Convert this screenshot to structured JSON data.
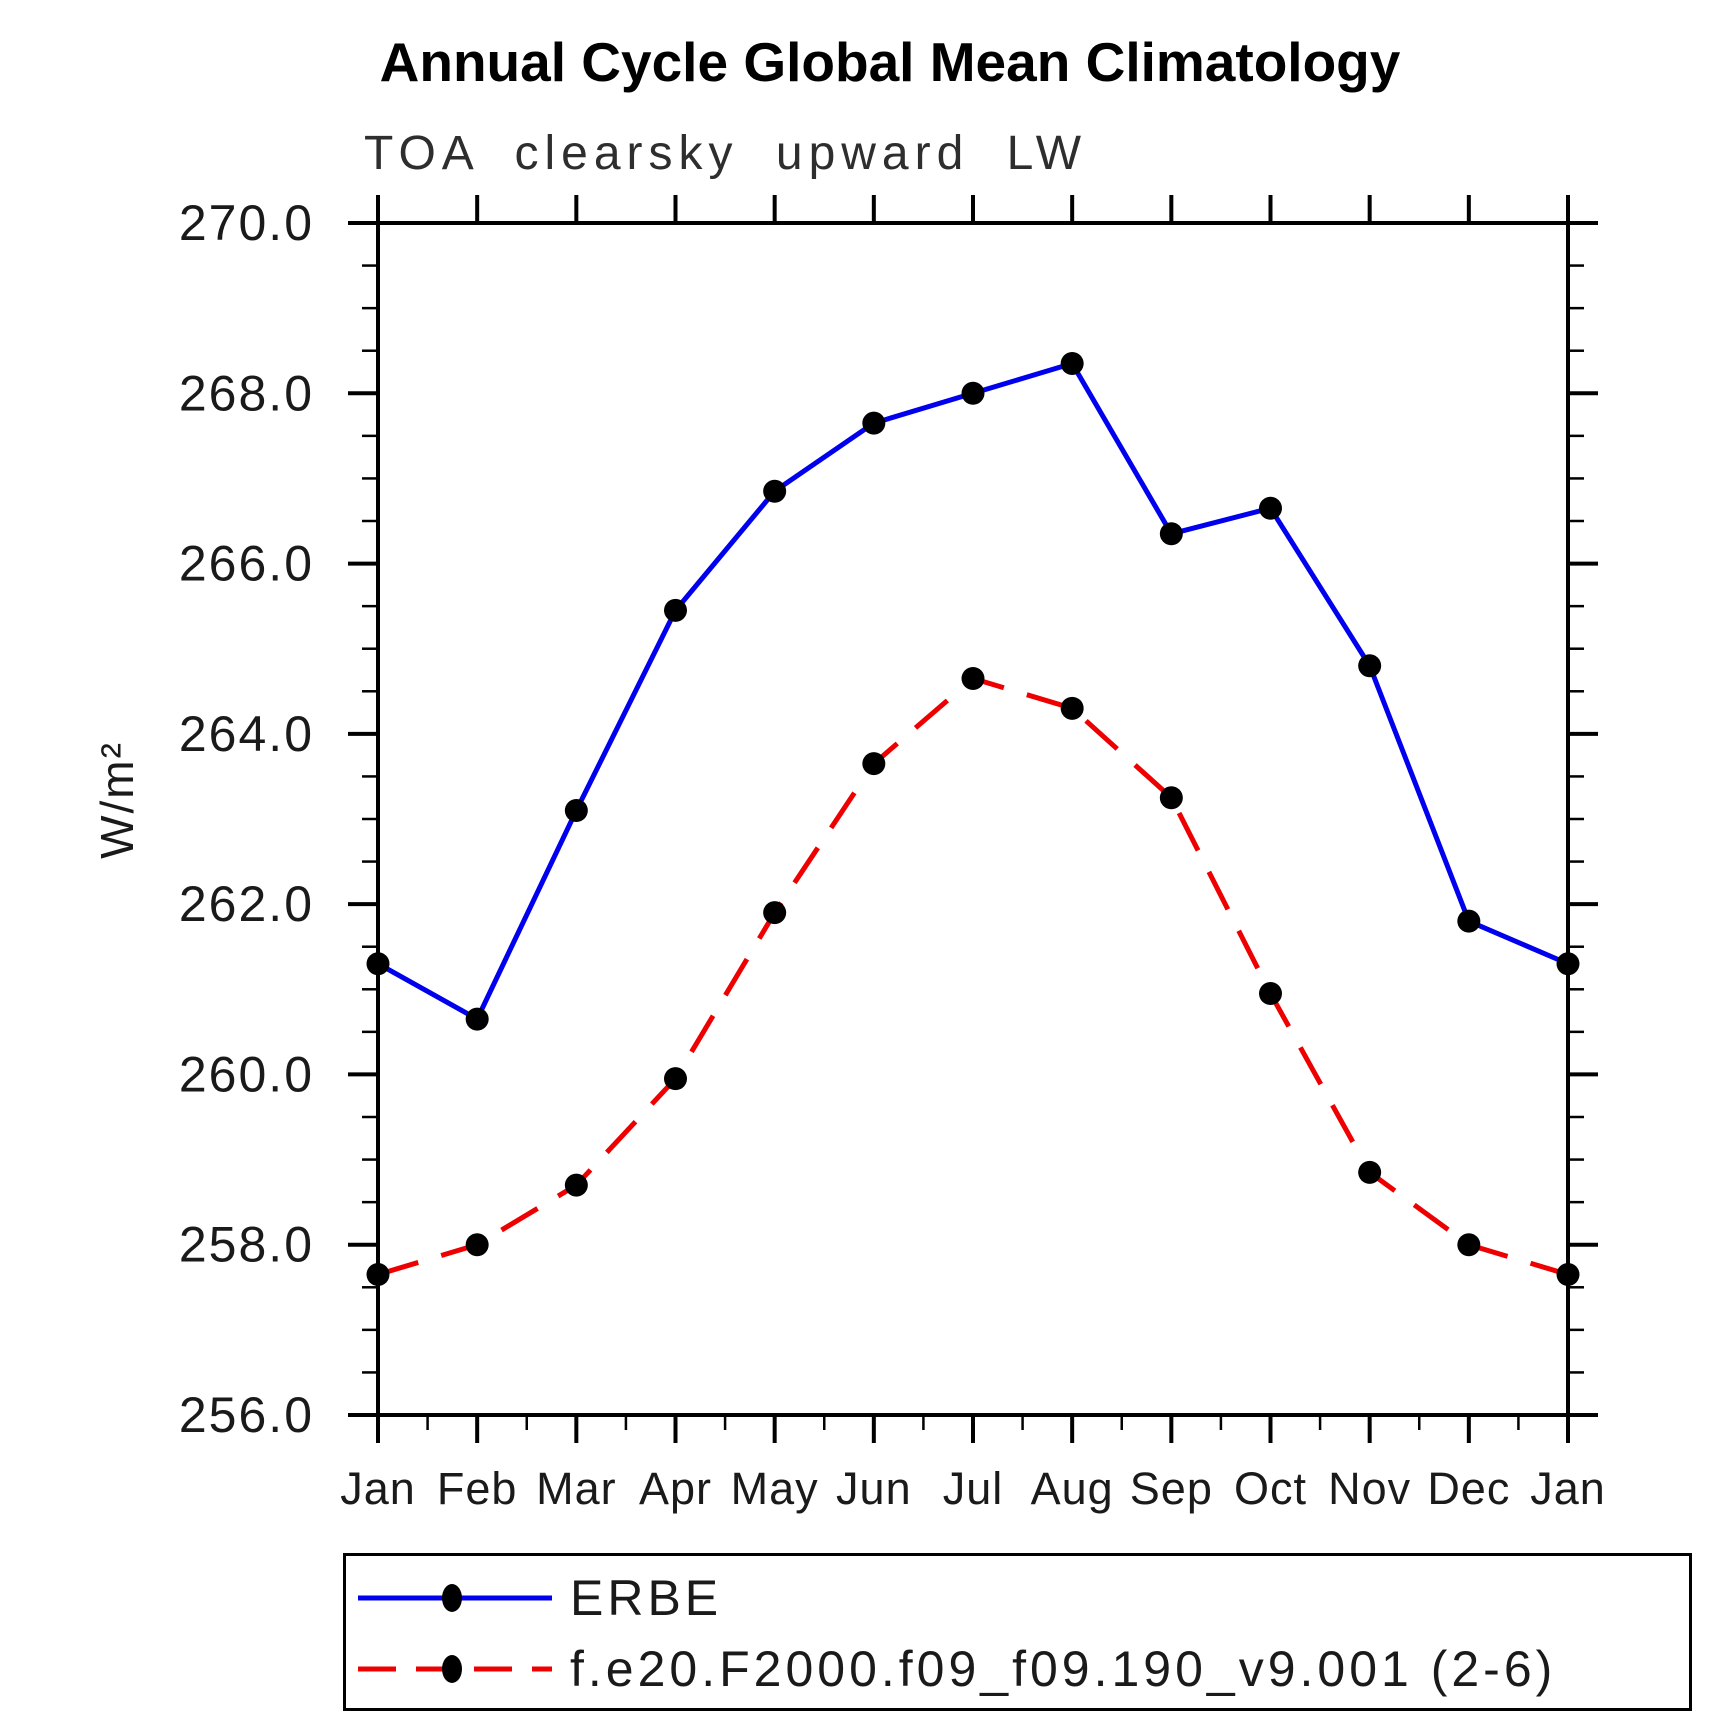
{
  "page": {
    "title": "Annual Cycle Global Mean Climatology",
    "subtitle": "TOA clearsky upward LW"
  },
  "chart_data": {
    "type": "line",
    "title": "Annual Cycle Global Mean Climatology",
    "subtitle": "TOA clearsky upward LW",
    "xlabel": "",
    "ylabel": "W/m²",
    "categories": [
      "Jan",
      "Feb",
      "Mar",
      "Apr",
      "May",
      "Jun",
      "Jul",
      "Aug",
      "Sep",
      "Oct",
      "Nov",
      "Dec",
      "Jan"
    ],
    "ylim": [
      256.0,
      270.0
    ],
    "ytick_major_interval": 2.0,
    "ytick_minor_interval": 0.5,
    "xtick_minor_interval": 0.5,
    "grid": false,
    "legend_position": "bottom-left-box",
    "axis_color": "#000000",
    "marker_color": "#000000",
    "series": [
      {
        "name": "ERBE",
        "color": "#0000ee",
        "style": "solid",
        "marker": "circle",
        "values": [
          261.3,
          260.65,
          263.1,
          265.45,
          266.85,
          267.65,
          268.0,
          268.35,
          266.35,
          266.65,
          264.8,
          261.8,
          261.3
        ]
      },
      {
        "name": "f.e20.F2000.f09_f09.190_v9.001 (2-6)",
        "color": "#ee0000",
        "style": "dashed",
        "marker": "circle",
        "values": [
          257.65,
          258.0,
          258.7,
          259.95,
          261.9,
          263.65,
          264.65,
          264.3,
          263.25,
          260.95,
          258.85,
          258.0,
          257.65
        ]
      }
    ]
  }
}
